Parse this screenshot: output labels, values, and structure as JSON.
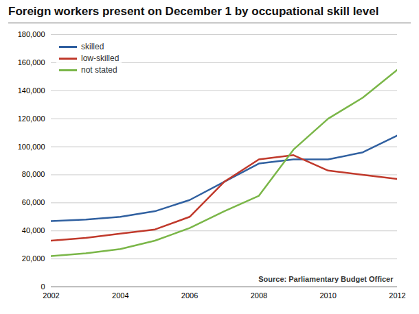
{
  "chart_data": {
    "type": "line",
    "title": "Foreign workers present on December 1 by occupational skill level",
    "annotations": [
      "Source: Parliamentary Budget Officer"
    ],
    "x": [
      2002,
      2003,
      2004,
      2005,
      2006,
      2007,
      2008,
      2009,
      2010,
      2011,
      2012
    ],
    "series": [
      {
        "name": "skilled",
        "color": "#3060a0",
        "values": [
          47000,
          48000,
          50000,
          54000,
          62000,
          75000,
          88000,
          91000,
          91000,
          96000,
          108000
        ]
      },
      {
        "name": "low-skilled",
        "color": "#c0392b",
        "values": [
          33000,
          35000,
          38000,
          41000,
          50000,
          75000,
          91000,
          94000,
          83000,
          80000,
          77000
        ]
      },
      {
        "name": "not stated",
        "color": "#7ab648",
        "values": [
          22000,
          24000,
          27000,
          33000,
          42000,
          54000,
          65000,
          98000,
          120000,
          135000,
          155000
        ]
      }
    ],
    "xlim": [
      2002,
      2012
    ],
    "xticks": [
      2002,
      2004,
      2006,
      2008,
      2010,
      2012
    ],
    "ylim": [
      0,
      180000
    ],
    "yticks": [
      0,
      {
        "value": 20000,
        "label": "20,000"
      },
      {
        "value": 40000,
        "label": "40,000"
      },
      {
        "value": 60000,
        "label": "60,000"
      },
      {
        "value": 80000,
        "label": "80,000"
      },
      {
        "value": 100000,
        "label": "100,000"
      },
      {
        "value": 120000,
        "label": "120,000"
      },
      {
        "value": 140000,
        "label": "140,000"
      },
      {
        "value": 160000,
        "label": "160,000"
      },
      {
        "value": 180000,
        "label": "180,000"
      }
    ],
    "grid": true,
    "legend": "upper left"
  }
}
